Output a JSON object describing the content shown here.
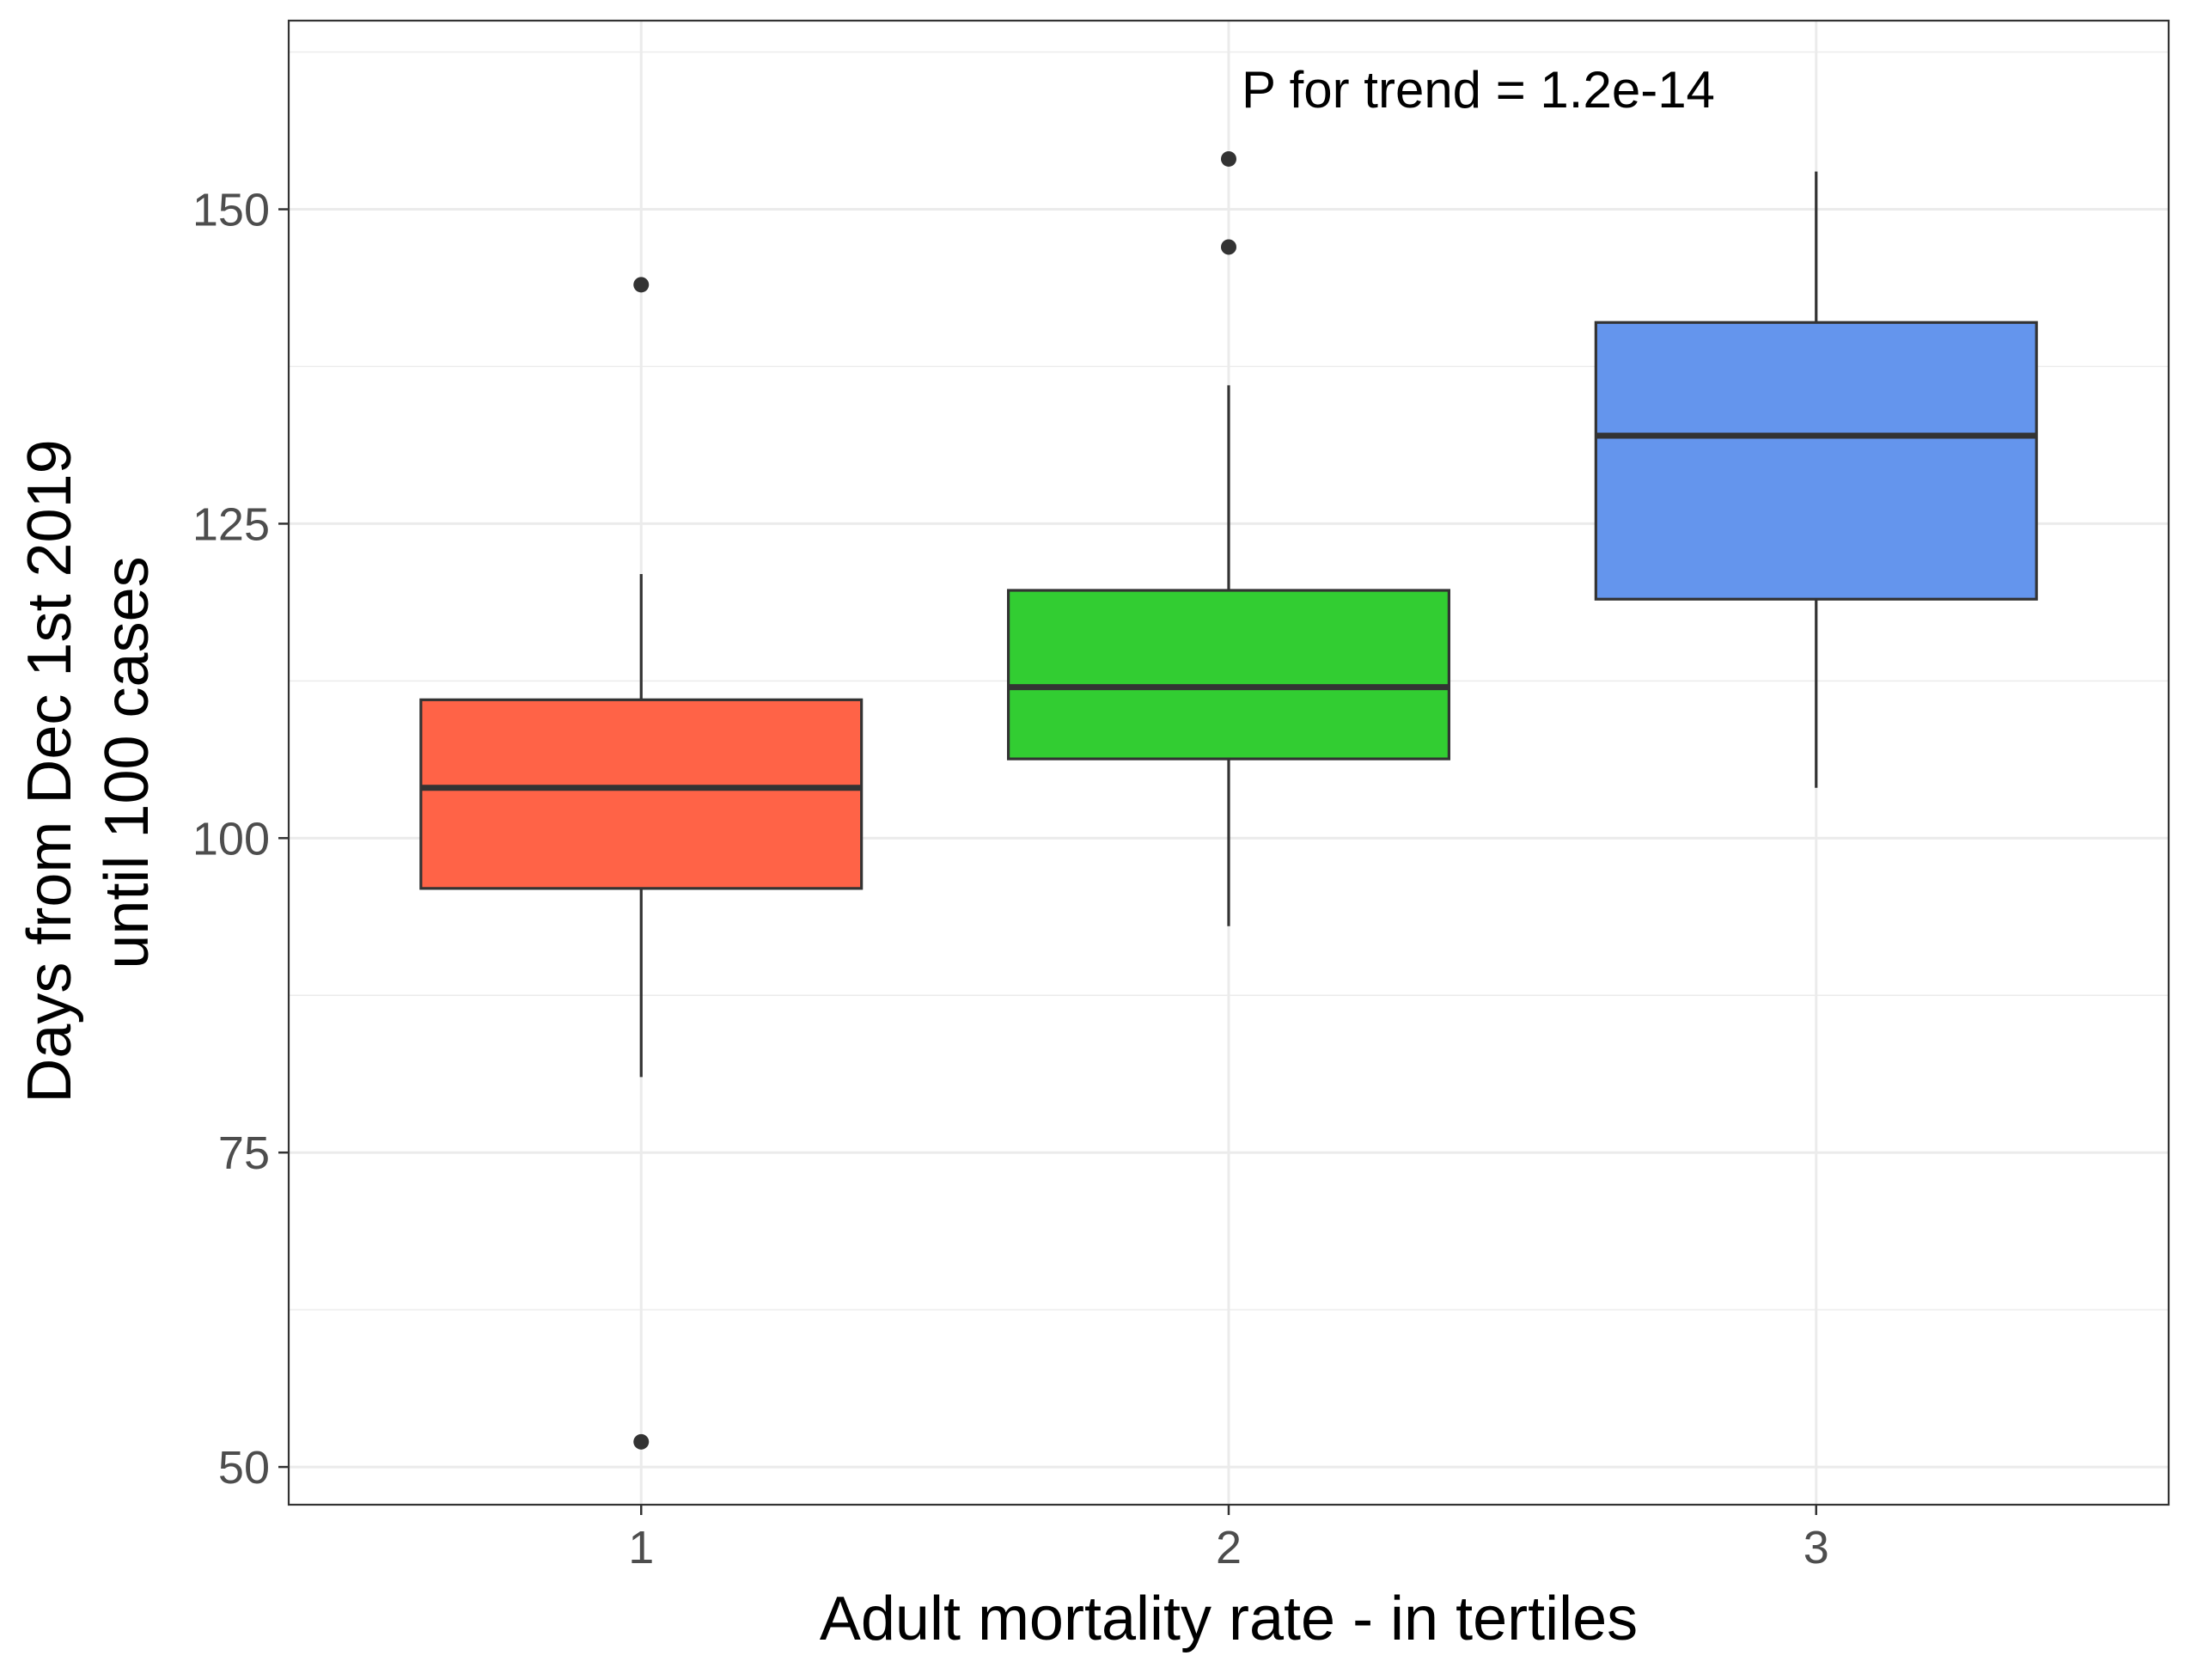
{
  "chart_data": {
    "type": "boxplot",
    "xlabel": "Adult mortality rate - in tertiles",
    "ylabel_lines": [
      "Days from Dec 1st 2019",
      "until 100 cases"
    ],
    "categories": [
      "1",
      "2",
      "3"
    ],
    "yticks": [
      50,
      75,
      100,
      125,
      150
    ],
    "ylim": [
      47,
      165
    ],
    "grid": true,
    "annotation": "P for trend = 1.2e-14",
    "boxes": [
      {
        "category": "1",
        "color": "#FF6347",
        "whisker_low": 81,
        "q1": 96,
        "median": 104,
        "q3": 111,
        "whisker_high": 121,
        "outliers": [
          144,
          52
        ]
      },
      {
        "category": "2",
        "color": "#32CD32",
        "whisker_low": 93,
        "q1": 106.3,
        "median": 112,
        "q3": 119.7,
        "whisker_high": 136,
        "outliers": [
          154,
          147
        ]
      },
      {
        "category": "3",
        "color": "#6495ED",
        "whisker_low": 104,
        "q1": 119,
        "median": 132,
        "q3": 141,
        "whisker_high": 153,
        "outliers": []
      }
    ]
  }
}
